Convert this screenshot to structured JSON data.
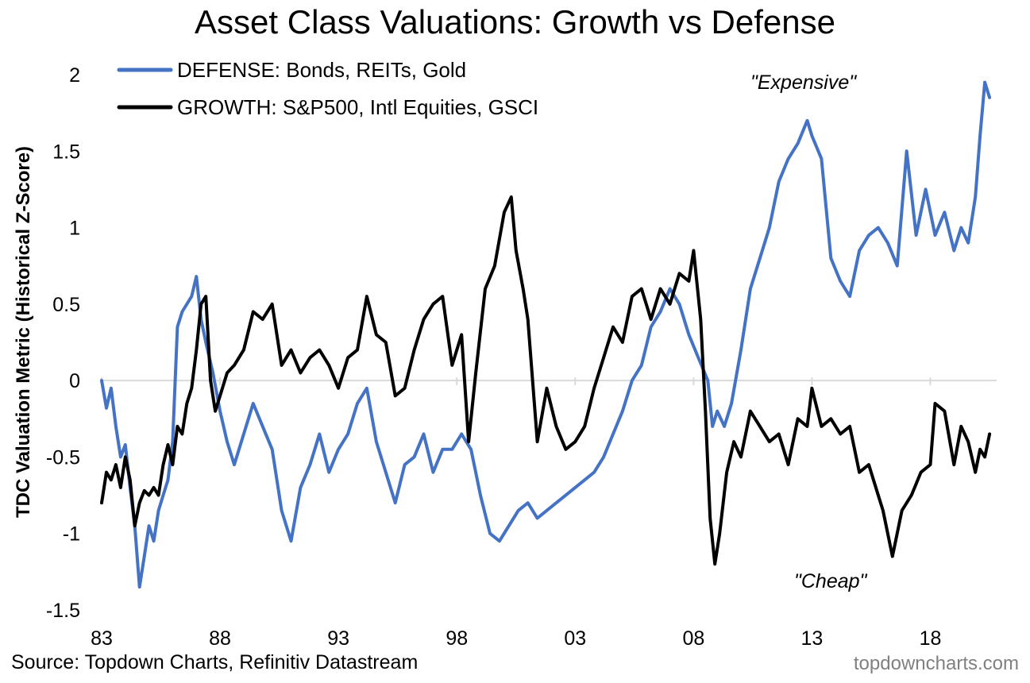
{
  "title": "Asset Class Valuations: Growth vs Defense",
  "source": "Source: Topdown Charts, Refinitiv Datastream",
  "watermark": "topdowncharts.com",
  "chart_data": {
    "type": "line",
    "title": "Asset Class Valuations: Growth vs Defense",
    "xlabel": "",
    "ylabel": "TDC Valuation Metric (Historical Z-Score)",
    "xlim": [
      1983,
      2020.8
    ],
    "ylim": [
      -1.5,
      2
    ],
    "x_ticks": [
      "83",
      "88",
      "93",
      "98",
      "03",
      "08",
      "13",
      "18"
    ],
    "y_ticks": [
      "2",
      "1.5",
      "1",
      "0.5",
      "0",
      "-0.5",
      "-1",
      "-1.5"
    ],
    "legend_position": "top-left",
    "annotations": [
      "\"Expensive\"",
      "\"Cheap\""
    ],
    "series": [
      {
        "name": "DEFENSE: Bonds, REITs, Gold",
        "color": "#4472C4",
        "x": [
          1983.0,
          1983.2,
          1983.4,
          1983.6,
          1983.8,
          1984.0,
          1984.2,
          1984.4,
          1984.6,
          1984.8,
          1985.0,
          1985.2,
          1985.4,
          1985.6,
          1985.8,
          1986.0,
          1986.2,
          1986.4,
          1986.6,
          1986.8,
          1987.0,
          1987.2,
          1987.4,
          1987.7,
          1988.0,
          1988.3,
          1988.6,
          1989.0,
          1989.4,
          1989.8,
          1990.2,
          1990.6,
          1991.0,
          1991.4,
          1991.8,
          1992.2,
          1992.6,
          1993.0,
          1993.4,
          1993.8,
          1994.2,
          1994.6,
          1995.0,
          1995.4,
          1995.8,
          1996.2,
          1996.6,
          1997.0,
          1997.4,
          1997.8,
          1998.2,
          1998.6,
          1999.0,
          1999.4,
          1999.8,
          2000.2,
          2000.6,
          2001.0,
          2001.4,
          2001.8,
          2002.2,
          2002.6,
          2003.0,
          2003.4,
          2003.8,
          2004.2,
          2004.6,
          2005.0,
          2005.4,
          2005.8,
          2006.2,
          2006.6,
          2007.0,
          2007.4,
          2007.8,
          2008.2,
          2008.6,
          2008.8,
          2009.0,
          2009.3,
          2009.6,
          2010.0,
          2010.4,
          2010.8,
          2011.2,
          2011.6,
          2012.0,
          2012.4,
          2012.8,
          2013.0,
          2013.4,
          2013.8,
          2014.2,
          2014.6,
          2015.0,
          2015.4,
          2015.8,
          2016.2,
          2016.6,
          2017.0,
          2017.4,
          2017.8,
          2018.2,
          2018.6,
          2019.0,
          2019.3,
          2019.6,
          2019.9,
          2020.1,
          2020.3,
          2020.5
        ],
        "values": [
          0.0,
          -0.18,
          -0.05,
          -0.3,
          -0.5,
          -0.42,
          -0.7,
          -0.95,
          -1.35,
          -1.15,
          -0.95,
          -1.05,
          -0.85,
          -0.75,
          -0.65,
          -0.4,
          0.35,
          0.45,
          0.5,
          0.55,
          0.68,
          0.4,
          0.25,
          0.05,
          -0.2,
          -0.4,
          -0.55,
          -0.35,
          -0.15,
          -0.3,
          -0.45,
          -0.85,
          -1.05,
          -0.7,
          -0.55,
          -0.35,
          -0.6,
          -0.45,
          -0.35,
          -0.15,
          -0.05,
          -0.4,
          -0.6,
          -0.8,
          -0.55,
          -0.5,
          -0.35,
          -0.6,
          -0.45,
          -0.45,
          -0.35,
          -0.45,
          -0.75,
          -1.0,
          -1.05,
          -0.95,
          -0.85,
          -0.8,
          -0.9,
          -0.85,
          -0.8,
          -0.75,
          -0.7,
          -0.65,
          -0.6,
          -0.5,
          -0.35,
          -0.2,
          0.0,
          0.1,
          0.35,
          0.45,
          0.6,
          0.5,
          0.3,
          0.15,
          0.0,
          -0.3,
          -0.2,
          -0.3,
          -0.15,
          0.2,
          0.6,
          0.8,
          1.0,
          1.3,
          1.45,
          1.55,
          1.7,
          1.6,
          1.45,
          0.8,
          0.65,
          0.55,
          0.85,
          0.95,
          1.0,
          0.9,
          0.75,
          1.5,
          0.95,
          1.25,
          0.95,
          1.1,
          0.85,
          1.0,
          0.9,
          1.2,
          1.6,
          1.95,
          1.85
        ]
      },
      {
        "name": "GROWTH: S&P500, Intl Equities, GSCI",
        "color": "#000000",
        "x": [
          1983.0,
          1983.2,
          1983.4,
          1983.6,
          1983.8,
          1984.0,
          1984.2,
          1984.4,
          1984.6,
          1984.8,
          1985.0,
          1985.2,
          1985.4,
          1985.6,
          1985.8,
          1986.0,
          1986.2,
          1986.4,
          1986.6,
          1986.8,
          1987.0,
          1987.2,
          1987.4,
          1987.6,
          1987.8,
          1988.0,
          1988.3,
          1988.6,
          1989.0,
          1989.4,
          1989.8,
          1990.2,
          1990.6,
          1991.0,
          1991.4,
          1991.8,
          1992.2,
          1992.6,
          1993.0,
          1993.4,
          1993.8,
          1994.2,
          1994.6,
          1995.0,
          1995.4,
          1995.8,
          1996.2,
          1996.6,
          1997.0,
          1997.4,
          1997.8,
          1998.2,
          1998.5,
          1998.8,
          1999.2,
          1999.6,
          2000.0,
          2000.3,
          2000.5,
          2000.8,
          2001.0,
          2001.4,
          2001.8,
          2002.2,
          2002.6,
          2003.0,
          2003.4,
          2003.8,
          2004.2,
          2004.6,
          2005.0,
          2005.4,
          2005.8,
          2006.2,
          2006.6,
          2007.0,
          2007.4,
          2007.8,
          2008.0,
          2008.3,
          2008.5,
          2008.7,
          2008.9,
          2009.1,
          2009.4,
          2009.7,
          2010.0,
          2010.4,
          2010.8,
          2011.2,
          2011.6,
          2012.0,
          2012.4,
          2012.8,
          2013.0,
          2013.4,
          2013.8,
          2014.2,
          2014.6,
          2015.0,
          2015.4,
          2015.8,
          2016.0,
          2016.4,
          2016.8,
          2017.2,
          2017.6,
          2018.0,
          2018.2,
          2018.6,
          2019.0,
          2019.3,
          2019.6,
          2019.9,
          2020.1,
          2020.3,
          2020.5
        ],
        "values": [
          -0.8,
          -0.6,
          -0.65,
          -0.55,
          -0.7,
          -0.5,
          -0.65,
          -0.95,
          -0.8,
          -0.72,
          -0.75,
          -0.7,
          -0.75,
          -0.55,
          -0.42,
          -0.55,
          -0.3,
          -0.35,
          -0.15,
          -0.05,
          0.2,
          0.5,
          0.55,
          0.0,
          -0.2,
          -0.1,
          0.05,
          0.1,
          0.2,
          0.45,
          0.4,
          0.5,
          0.1,
          0.2,
          0.05,
          0.15,
          0.2,
          0.1,
          -0.05,
          0.15,
          0.2,
          0.55,
          0.3,
          0.25,
          -0.1,
          -0.05,
          0.2,
          0.4,
          0.5,
          0.55,
          0.1,
          0.3,
          -0.4,
          0.05,
          0.6,
          0.75,
          1.1,
          1.2,
          0.85,
          0.6,
          0.4,
          -0.4,
          -0.05,
          -0.3,
          -0.45,
          -0.4,
          -0.3,
          -0.05,
          0.15,
          0.35,
          0.25,
          0.55,
          0.6,
          0.4,
          0.6,
          0.5,
          0.7,
          0.65,
          0.85,
          0.4,
          -0.2,
          -0.9,
          -1.2,
          -1.0,
          -0.6,
          -0.4,
          -0.5,
          -0.2,
          -0.3,
          -0.4,
          -0.35,
          -0.55,
          -0.25,
          -0.3,
          -0.05,
          -0.3,
          -0.25,
          -0.35,
          -0.3,
          -0.6,
          -0.55,
          -0.75,
          -0.85,
          -1.15,
          -0.85,
          -0.75,
          -0.6,
          -0.55,
          -0.15,
          -0.2,
          -0.55,
          -0.3,
          -0.4,
          -0.6,
          -0.45,
          -0.5,
          -0.35
        ]
      }
    ]
  }
}
